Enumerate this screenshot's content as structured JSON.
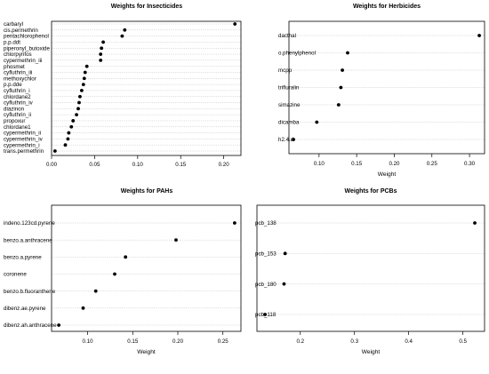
{
  "chart_data": [
    {
      "type": "scatter",
      "title": "Weights for Insecticides",
      "xlabel": "",
      "ylabel": "",
      "xlim": [
        0,
        0.22
      ],
      "xticks": [
        "0.00",
        "0.05",
        "0.10",
        "0.15",
        "0.20"
      ],
      "xtick_values": [
        0,
        0.05,
        0.1,
        0.15,
        0.2
      ],
      "grid": true,
      "categories": [
        "carbaryl",
        "cis.permethrin",
        "pentachlorophenol",
        "p.p.ddt",
        "piperonyl_butoxide",
        "chlorpyrifos",
        "cypermethrin_iii",
        "phosmet",
        "cyfluthrin_iii",
        "methoxychlor",
        "p.p.dde",
        "cyfluthrin_i",
        "chlordane2",
        "cyfluthrin_iv",
        "diazinon",
        "cyfluthrin_ii",
        "propoxur",
        "chlordane1",
        "cypermethrin_ii",
        "cypermethrin_iv",
        "cypermethrin_i",
        "trans.permethrin"
      ],
      "values": [
        0.213,
        0.085,
        0.082,
        0.06,
        0.058,
        0.057,
        0.057,
        0.041,
        0.039,
        0.038,
        0.037,
        0.035,
        0.033,
        0.032,
        0.031,
        0.029,
        0.025,
        0.023,
        0.02,
        0.019,
        0.016,
        0.004
      ]
    },
    {
      "type": "scatter",
      "title": "Weights for Herbicides",
      "xlabel": "Weight",
      "ylabel": "",
      "xlim": [
        0.06,
        0.32
      ],
      "xticks": [
        "0.10",
        "0.15",
        "0.20",
        "0.25",
        "0.30"
      ],
      "xtick_values": [
        0.1,
        0.15,
        0.2,
        0.25,
        0.3
      ],
      "grid": true,
      "categories": [
        "dacthal",
        "o.phenylphenol",
        "mcpp",
        "trifluralin",
        "simazine",
        "dicamba",
        "h2.4.d"
      ],
      "values": [
        0.313,
        0.138,
        0.131,
        0.129,
        0.126,
        0.097,
        0.066
      ]
    },
    {
      "type": "scatter",
      "title": "Weights for PAHs",
      "xlabel": "Weight",
      "ylabel": "",
      "xlim": [
        0.06,
        0.27
      ],
      "xticks": [
        "0.10",
        "0.15",
        "0.20",
        "0.25"
      ],
      "xtick_values": [
        0.1,
        0.15,
        0.2,
        0.25
      ],
      "grid": true,
      "categories": [
        "indeno.123cd.pyrene",
        "benzo.a.anthracene",
        "benzo.a.pyrene",
        "coronene",
        "benzo.b.fluoranthene",
        "dibenz.ae.pyrene",
        "dibenz.ah.anthracene"
      ],
      "values": [
        0.263,
        0.198,
        0.142,
        0.13,
        0.109,
        0.095,
        0.068
      ]
    },
    {
      "type": "scatter",
      "title": "Weights for PCBs",
      "xlabel": "Weight",
      "ylabel": "",
      "xlim": [
        0.12,
        0.54
      ],
      "xticks": [
        "0.2",
        "0.3",
        "0.4",
        "0.5"
      ],
      "xtick_values": [
        0.2,
        0.3,
        0.4,
        0.5
      ],
      "grid": true,
      "categories": [
        "pcb_138",
        "pcb_153",
        "pcb_180",
        "pcb_118"
      ],
      "values": [
        0.522,
        0.172,
        0.17,
        0.135
      ]
    }
  ]
}
